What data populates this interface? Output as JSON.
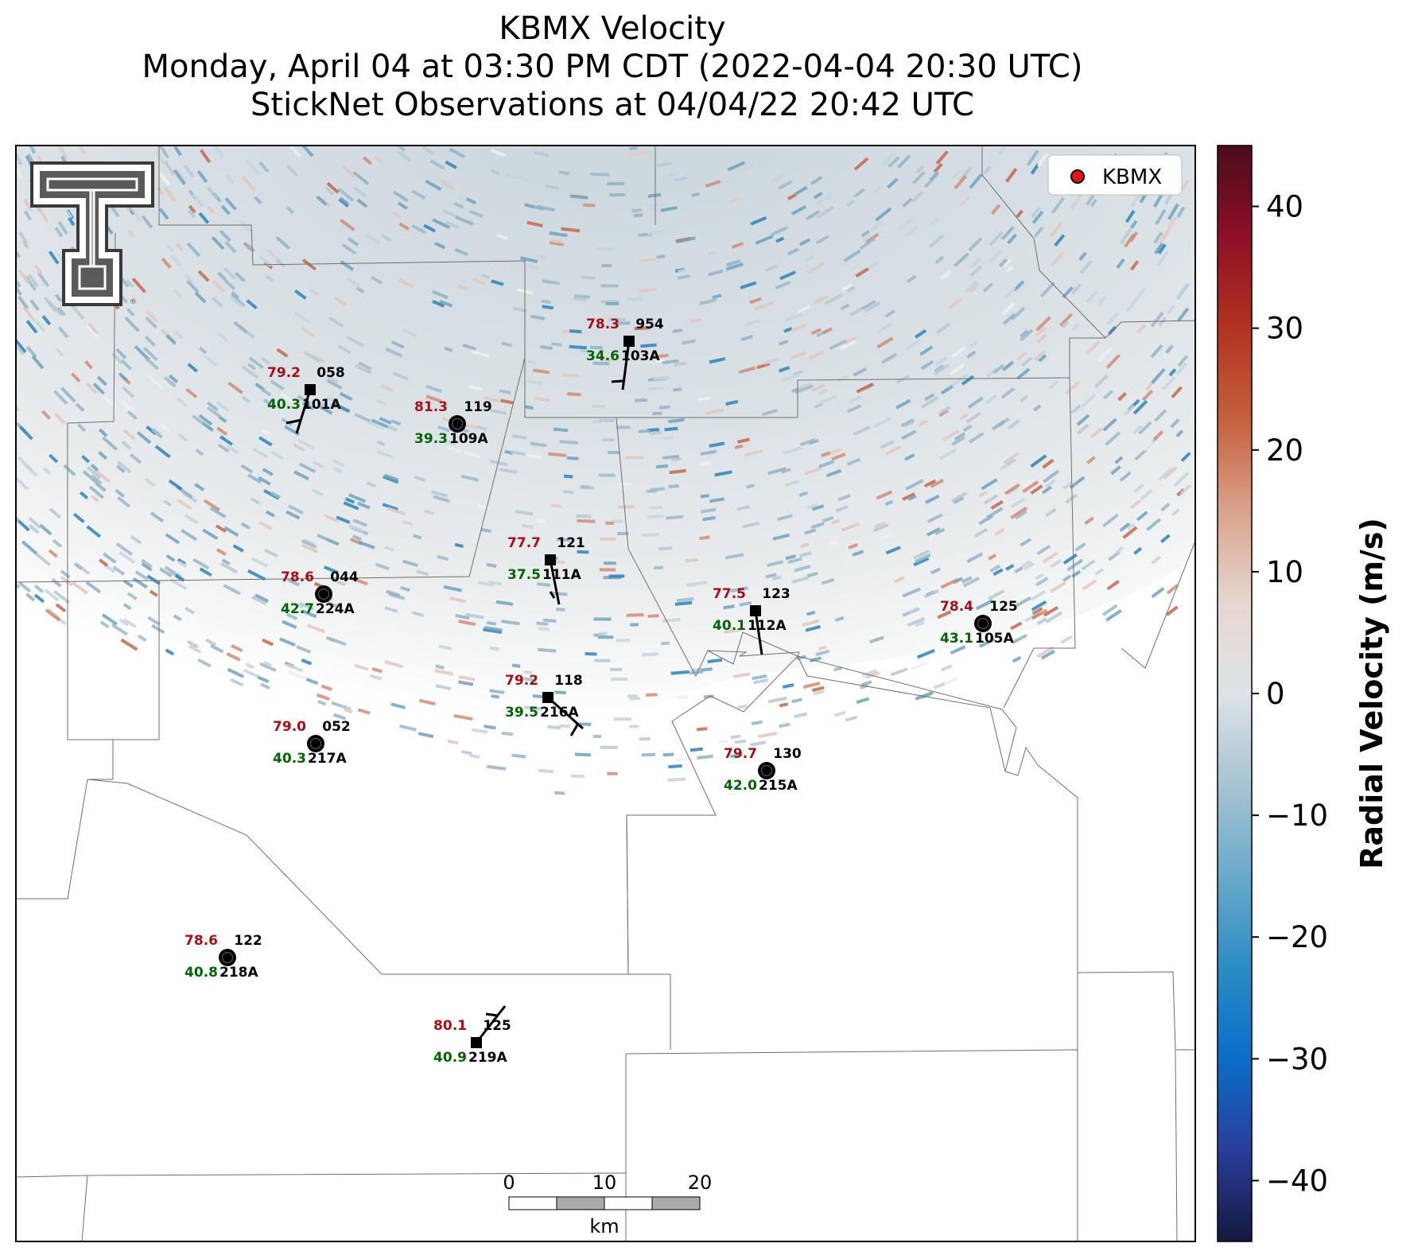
{
  "title": {
    "line1": "KBMX Velocity",
    "line2": "Monday, April 04 at 03:30 PM CDT (2022-04-04 20:30 UTC)",
    "line3": "StickNet Observations at 04/04/22 20:42 UTC"
  },
  "legend": {
    "label": "KBMX",
    "marker_color": "#e8101a"
  },
  "colorbar": {
    "label": "Radial Velocity (m/s)",
    "min": -45,
    "max": 45,
    "ticks": [
      "40",
      "30",
      "20",
      "10",
      "0",
      "−10",
      "−20",
      "−30",
      "−40"
    ],
    "tick_values": [
      40,
      30,
      20,
      10,
      0,
      -10,
      -20,
      -30,
      -40
    ],
    "colors": [
      "#16183f",
      "#2a3e9a",
      "#0a6ec8",
      "#2b8cc4",
      "#6aa9c9",
      "#a7c3d1",
      "#dde3e6",
      "#e6d7d2",
      "#d9a28c",
      "#c4603c",
      "#b23321",
      "#8e0f26",
      "#4a0d1b"
    ]
  },
  "scale_bar": {
    "unit": "km",
    "labels": [
      "0",
      "10",
      "20"
    ]
  },
  "logo": {
    "name": "texas-tech-double-t-logo"
  },
  "colors": {
    "temperature": "#a50f15",
    "dewpoint": "#006400",
    "station": "#000000"
  },
  "stations": [
    {
      "id": "101A",
      "temp": "79.2",
      "dew": "40.3",
      "pressure": "058",
      "marker": "square"
    },
    {
      "id": "109A",
      "temp": "81.3",
      "dew": "39.3",
      "pressure": "119",
      "marker": "calm"
    },
    {
      "id": "103A",
      "temp": "78.3",
      "dew": "34.6",
      "pressure": "954",
      "marker": "square"
    },
    {
      "id": "224A",
      "temp": "78.6",
      "dew": "42.7",
      "pressure": "044",
      "marker": "calm"
    },
    {
      "id": "111A",
      "temp": "77.7",
      "dew": "37.5",
      "pressure": "121",
      "marker": "square"
    },
    {
      "id": "112A",
      "temp": "77.5",
      "dew": "40.1",
      "pressure": "123",
      "marker": "square"
    },
    {
      "id": "105A",
      "temp": "78.4",
      "dew": "43.1",
      "pressure": "125",
      "marker": "calm"
    },
    {
      "id": "216A",
      "temp": "79.2",
      "dew": "39.5",
      "pressure": "118",
      "marker": "square"
    },
    {
      "id": "217A",
      "temp": "79.0",
      "dew": "40.3",
      "pressure": "052",
      "marker": "calm"
    },
    {
      "id": "215A",
      "temp": "79.7",
      "dew": "42.0",
      "pressure": "130",
      "marker": "calm"
    },
    {
      "id": "218A",
      "temp": "78.6",
      "dew": "40.8",
      "pressure": "122",
      "marker": "calm"
    },
    {
      "id": "219A",
      "temp": "80.1",
      "dew": "40.9",
      "pressure": "125",
      "marker": "square"
    }
  ]
}
